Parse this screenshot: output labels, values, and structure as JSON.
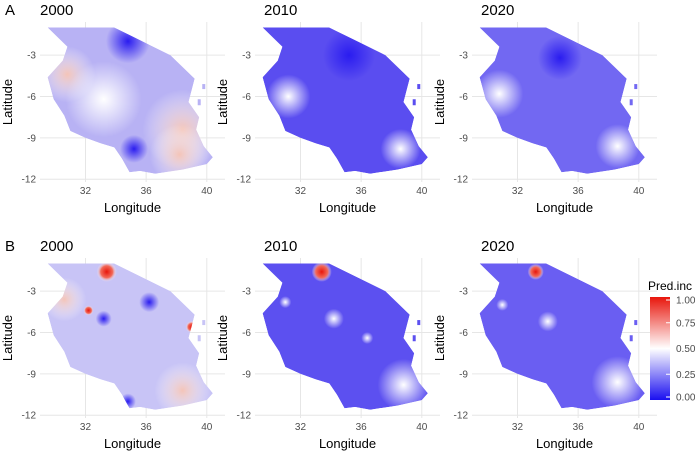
{
  "figure": {
    "rows": [
      {
        "label": "A",
        "panels": [
          {
            "year": "2000"
          },
          {
            "year": "2010"
          },
          {
            "year": "2020"
          }
        ]
      },
      {
        "label": "B",
        "panels": [
          {
            "year": "2000"
          },
          {
            "year": "2010"
          },
          {
            "year": "2020"
          }
        ]
      }
    ],
    "axes": {
      "xlabel": "Longitude",
      "ylabel": "Latitude",
      "xticks": [
        "32",
        "36",
        "40"
      ],
      "yticks": [
        "-3",
        "-6",
        "-9",
        "-12"
      ]
    },
    "legend": {
      "title": "Pred.inc",
      "ticks": [
        "1.00",
        "0.75",
        "0.50",
        "0.25",
        "0.00"
      ],
      "colors": {
        "low": "#1a0ff0",
        "mid": "#ffffff",
        "high": "#e8160c"
      }
    },
    "panel_background": "#ffffff",
    "grid_color": "#e6e6e6"
  }
}
